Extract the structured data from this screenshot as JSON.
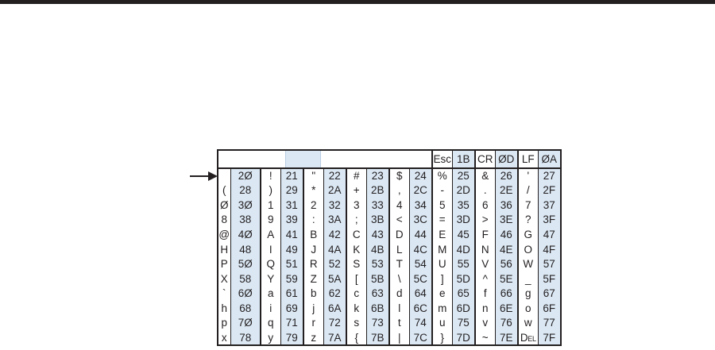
{
  "figure": {
    "top_bar_color": "#231f20",
    "accent_color": "#dbe8f4",
    "ink_color": "#231f20"
  },
  "table": {
    "header": {
      "controls": [
        {
          "label": "Esc",
          "hex": "1B"
        },
        {
          "label": "CR",
          "hex": "ØD"
        },
        {
          "label": "LF",
          "hex": "ØA"
        }
      ]
    },
    "rows": [
      [
        [
          "",
          "2Ø"
        ],
        [
          "!",
          "21"
        ],
        [
          "\"",
          "22"
        ],
        [
          "#",
          "23"
        ],
        [
          "$",
          "24"
        ],
        [
          "%",
          "25"
        ],
        [
          "&",
          "26"
        ],
        [
          "'",
          "27"
        ]
      ],
      [
        [
          "(",
          "28"
        ],
        [
          ")",
          "29"
        ],
        [
          "*",
          "2A"
        ],
        [
          "+",
          "2B"
        ],
        [
          ",",
          "2C"
        ],
        [
          "-",
          "2D"
        ],
        [
          ".",
          "2E"
        ],
        [
          "/",
          "2F"
        ]
      ],
      [
        [
          "Ø",
          "3Ø"
        ],
        [
          "1",
          "31"
        ],
        [
          "2",
          "32"
        ],
        [
          "3",
          "33"
        ],
        [
          "4",
          "34"
        ],
        [
          "5",
          "35"
        ],
        [
          "6",
          "36"
        ],
        [
          "7",
          "37"
        ]
      ],
      [
        [
          "8",
          "38"
        ],
        [
          "9",
          "39"
        ],
        [
          ":",
          "3A"
        ],
        [
          ";",
          "3B"
        ],
        [
          "<",
          "3C"
        ],
        [
          "=",
          "3D"
        ],
        [
          ">",
          "3E"
        ],
        [
          "?",
          "3F"
        ]
      ],
      [
        [
          "@",
          "4Ø"
        ],
        [
          "A",
          "41"
        ],
        [
          "B",
          "42"
        ],
        [
          "C",
          "43"
        ],
        [
          "D",
          "44"
        ],
        [
          "E",
          "45"
        ],
        [
          "F",
          "46"
        ],
        [
          "G",
          "47"
        ]
      ],
      [
        [
          "H",
          "48"
        ],
        [
          "I",
          "49"
        ],
        [
          "J",
          "4A"
        ],
        [
          "K",
          "4B"
        ],
        [
          "L",
          "4C"
        ],
        [
          "M",
          "4D"
        ],
        [
          "N",
          "4E"
        ],
        [
          "O",
          "4F"
        ]
      ],
      [
        [
          "P",
          "5Ø"
        ],
        [
          "Q",
          "51"
        ],
        [
          "R",
          "52"
        ],
        [
          "S",
          "53"
        ],
        [
          "T",
          "54"
        ],
        [
          "U",
          "55"
        ],
        [
          "V",
          "56"
        ],
        [
          "W",
          "57"
        ]
      ],
      [
        [
          "X",
          "58"
        ],
        [
          "Y",
          "59"
        ],
        [
          "Z",
          "5A"
        ],
        [
          "[",
          "5B"
        ],
        [
          "\\",
          "5C"
        ],
        [
          "]",
          "5D"
        ],
        [
          "^",
          "5E"
        ],
        [
          "_",
          "5F"
        ]
      ],
      [
        [
          "`",
          "6Ø"
        ],
        [
          "a",
          "61"
        ],
        [
          "b",
          "62"
        ],
        [
          "c",
          "63"
        ],
        [
          "d",
          "64"
        ],
        [
          "e",
          "65"
        ],
        [
          "f",
          "66"
        ],
        [
          "g",
          "67"
        ]
      ],
      [
        [
          "h",
          "68"
        ],
        [
          "i",
          "69"
        ],
        [
          "j",
          "6A"
        ],
        [
          "k",
          "6B"
        ],
        [
          "l",
          "6C"
        ],
        [
          "m",
          "6D"
        ],
        [
          "n",
          "6E"
        ],
        [
          "o",
          "6F"
        ]
      ],
      [
        [
          "p",
          "7Ø"
        ],
        [
          "q",
          "71"
        ],
        [
          "r",
          "72"
        ],
        [
          "s",
          "73"
        ],
        [
          "t",
          "74"
        ],
        [
          "u",
          "75"
        ],
        [
          "v",
          "76"
        ],
        [
          "w",
          "77"
        ]
      ],
      [
        [
          "x",
          "78"
        ],
        [
          "y",
          "79"
        ],
        [
          "z",
          "7A"
        ],
        [
          "{",
          "7B"
        ],
        [
          "|",
          "7C"
        ],
        [
          "}",
          "7D"
        ],
        [
          "~",
          "7E"
        ],
        [
          "Del",
          "7F"
        ]
      ]
    ]
  }
}
